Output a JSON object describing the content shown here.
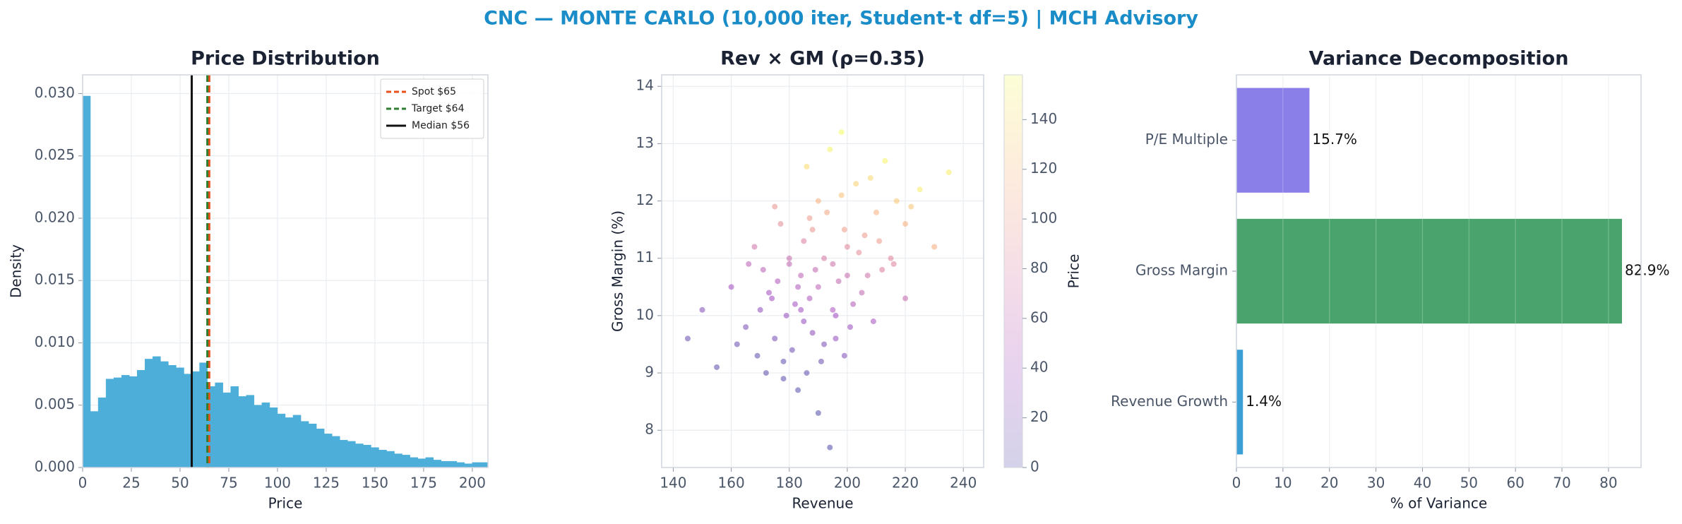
{
  "title": "CNC — MONTE CARLO (10,000 iter, Student-t df=5) | MCH Advisory",
  "chart_data": [
    {
      "type": "histogram",
      "title": "Price Distribution",
      "xlabel": "Price",
      "ylabel": "Density",
      "color": "#4dafd9",
      "grid": true,
      "bins": [
        0,
        4,
        8,
        12,
        16,
        20,
        24,
        28,
        32,
        36,
        40,
        44,
        48,
        52,
        56,
        60,
        64,
        68,
        72,
        76,
        80,
        84,
        88,
        92,
        96,
        100,
        104,
        108,
        112,
        116,
        120,
        124,
        128,
        132,
        136,
        140,
        144,
        148,
        152,
        156,
        160,
        164,
        168,
        172,
        176,
        180,
        184,
        188,
        192,
        196,
        200,
        204,
        208
      ],
      "values": [
        0.0298,
        0.0045,
        0.0056,
        0.0071,
        0.0072,
        0.0074,
        0.0073,
        0.0078,
        0.0087,
        0.0089,
        0.0085,
        0.0082,
        0.008,
        0.0075,
        0.0077,
        0.0084,
        0.0065,
        0.0068,
        0.006,
        0.0065,
        0.0057,
        0.0058,
        0.005,
        0.0052,
        0.0048,
        0.0043,
        0.004,
        0.0042,
        0.0037,
        0.0035,
        0.0031,
        0.0027,
        0.0025,
        0.0022,
        0.0021,
        0.0019,
        0.0018,
        0.0016,
        0.0014,
        0.0013,
        0.0011,
        0.001,
        0.0008,
        0.0007,
        0.0008,
        0.0006,
        0.0005,
        0.0005,
        0.0004,
        0.0003,
        0.0004,
        0.0004
      ],
      "xlim": [
        0,
        208
      ],
      "xticks": [
        0,
        25,
        50,
        75,
        100,
        125,
        150,
        175,
        200
      ],
      "ylim": [
        0,
        0.0315
      ],
      "yticks": [
        {
          "value": 0,
          "label": "0.000"
        },
        {
          "value": 0.005,
          "label": "0.005"
        },
        {
          "value": 0.01,
          "label": "0.010"
        },
        {
          "value": 0.015,
          "label": "0.015"
        },
        {
          "value": 0.02,
          "label": "0.020"
        },
        {
          "value": 0.025,
          "label": "0.025"
        },
        {
          "value": 0.03,
          "label": "0.030"
        }
      ],
      "lines": [
        {
          "name": "Spot $65",
          "value": 65,
          "color": "#e8501a",
          "dashed": true
        },
        {
          "name": "Target $64",
          "value": 64,
          "color": "#2e7d32",
          "dashed": true
        },
        {
          "name": "Median $56",
          "value": 56,
          "color": "#111111",
          "dashed": false
        }
      ],
      "legend": "upper right"
    },
    {
      "type": "scatter",
      "title": "Rev × GM (ρ=0.35)",
      "xlabel": "Revenue",
      "ylabel": "Gross Margin (%)",
      "colormap": "plasma",
      "grid": true,
      "x": [
        190,
        182,
        200,
        175,
        210,
        195,
        185,
        170,
        205,
        188,
        178,
        198,
        215,
        192,
        165,
        184,
        208,
        196,
        180,
        172,
        220,
        187,
        201,
        160,
        193,
        176,
        212,
        183,
        199,
        189,
        168,
        204,
        191,
        179,
        225,
        186,
        174,
        197,
        209,
        181,
        194,
        155,
        202,
        185,
        217,
        177,
        190,
        206,
        171,
        195,
        230,
        150,
        188,
        213,
        183,
        199,
        162,
        207,
        192,
        175,
        220,
        186,
        198,
        169,
        211,
        180,
        194,
        203,
        178,
        190,
        145,
        222,
        184,
        200,
        173,
        216,
        187,
        196,
        235,
        166
      ],
      "y": [
        10.5,
        10.2,
        11.2,
        9.6,
        11.8,
        10.9,
        9.9,
        10.1,
        10.4,
        11.5,
        9.2,
        12.1,
        11.0,
        9.5,
        9.8,
        10.7,
        12.4,
        10.0,
        11.0,
        9.0,
        11.6,
        10.3,
        9.8,
        10.5,
        11.8,
        10.6,
        10.8,
        8.7,
        11.5,
        10.8,
        11.2,
        11.1,
        9.2,
        10.0,
        12.2,
        12.6,
        10.3,
        10.6,
        9.9,
        9.4,
        12.9,
        9.1,
        10.2,
        11.3,
        12.0,
        11.6,
        8.3,
        11.4,
        10.8,
        10.1,
        11.2,
        10.1,
        9.7,
        12.7,
        10.5,
        9.3,
        9.5,
        10.7,
        11.0,
        11.9,
        10.3,
        9.0,
        13.2,
        9.3,
        11.3,
        10.9,
        7.7,
        12.3,
        8.9,
        12.0,
        9.6,
        11.9,
        10.1,
        10.7,
        10.4,
        10.9,
        11.7,
        9.6,
        12.5,
        10.9
      ],
      "c": [
        55,
        40,
        85,
        18,
        115,
        68,
        32,
        30,
        60,
        95,
        8,
        125,
        85,
        20,
        20,
        55,
        140,
        38,
        65,
        5,
        115,
        45,
        35,
        40,
        108,
        48,
        78,
        2,
        102,
        60,
        70,
        88,
        12,
        33,
        150,
        140,
        38,
        60,
        42,
        15,
        152,
        5,
        50,
        80,
        130,
        90,
        0,
        98,
        55,
        45,
        112,
        22,
        28,
        155,
        48,
        22,
        12,
        70,
        75,
        95,
        62,
        8,
        158,
        8,
        100,
        60,
        0,
        135,
        4,
        115,
        10,
        128,
        40,
        65,
        40,
        82,
        100,
        32,
        150,
        55
      ],
      "xlim": [
        136,
        247
      ],
      "xticks": [
        140,
        160,
        180,
        200,
        220,
        240
      ],
      "ylim": [
        7.35,
        14.2
      ],
      "yticks": [
        8,
        9,
        10,
        11,
        12,
        13,
        14
      ],
      "clim": [
        0,
        158
      ],
      "cticks": [
        0,
        20,
        40,
        60,
        80,
        100,
        120,
        140
      ],
      "colorbar_label": "Price"
    },
    {
      "type": "barh",
      "title": "Variance Decomposition",
      "xlabel": "% of Variance",
      "grid": true,
      "categories": [
        "Revenue Growth",
        "Gross Margin",
        "P/E Multiple"
      ],
      "values": [
        1.4,
        82.9,
        15.7
      ],
      "value_labels": [
        "1.4%",
        "82.9%",
        "15.7%"
      ],
      "colors": [
        "#3a9fd4",
        "#4aa36c",
        "#8a7ee8"
      ],
      "xlim": [
        0,
        87
      ],
      "xticks": [
        0,
        10,
        20,
        30,
        40,
        50,
        60,
        70,
        80
      ]
    }
  ]
}
